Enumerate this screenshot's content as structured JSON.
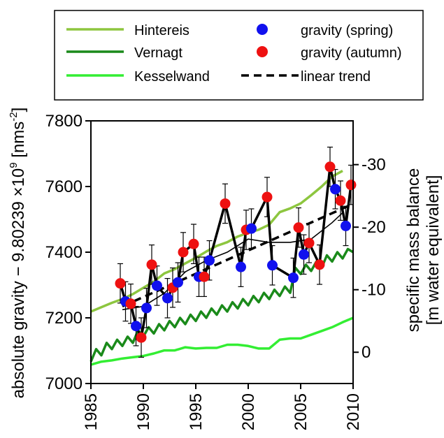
{
  "chart_data": {
    "type": "line",
    "x_axis": {
      "range": [
        1985,
        2010
      ],
      "ticks": [
        "1985",
        "1990",
        "1995",
        "2000",
        "2005",
        "2010"
      ]
    },
    "y_left": {
      "label_main": "absolute gravity − 9.80239 ×10",
      "label_sup1": "9",
      "label_unit": " [nms",
      "label_sup2": "-2",
      "label_end": "]",
      "range": [
        7000,
        7800
      ],
      "ticks": [
        "7000",
        "7200",
        "7400",
        "7600",
        "7800"
      ]
    },
    "y_right": {
      "label_line1": "specific mass balance",
      "label_line2": "[m water equivalent]",
      "range_top": -37,
      "range_bottom": 5,
      "ticks": [
        "0",
        "-10",
        "-20",
        "-30"
      ]
    },
    "legend": {
      "position": "top",
      "entries": [
        {
          "key": "hintereis",
          "label": "Hintereis",
          "kind": "line",
          "color": "#8dc63f",
          "dash": false
        },
        {
          "key": "vernagt",
          "label": "Vernagt",
          "kind": "line",
          "color": "#1a8a1a",
          "dash": false
        },
        {
          "key": "kesselwand",
          "label": "Kesselwand",
          "kind": "line",
          "color": "#33ee33",
          "dash": false
        },
        {
          "key": "spring",
          "label": "gravity (spring)",
          "kind": "marker",
          "color": "#1111ee"
        },
        {
          "key": "autumn",
          "label": "gravity (autumn)",
          "kind": "marker",
          "color": "#ee1111"
        },
        {
          "key": "trend",
          "label": "linear trend",
          "kind": "line",
          "color": "#000000",
          "dash": true
        }
      ]
    },
    "mass_balance_series": [
      {
        "key": "hintereis",
        "color": "#8dc63f",
        "width": 3.5,
        "x": [
          1985,
          1986,
          1987,
          1988,
          1989,
          1990,
          1991,
          1992,
          1993,
          1994,
          1995,
          1996,
          1997,
          1998,
          1999,
          2000,
          2001,
          2002,
          2003,
          2004,
          2005,
          2006,
          2007,
          2008,
          2009
        ],
        "y": [
          -6.5,
          -7.2,
          -7.9,
          -8.5,
          -9.3,
          -10.3,
          -11.3,
          -12.6,
          -13.3,
          -14.2,
          -15.1,
          -16.1,
          -17.0,
          -17.6,
          -18.5,
          -19.1,
          -19.6,
          -20.4,
          -22.4,
          -23.0,
          -23.8,
          -25.1,
          -26.5,
          -28.1,
          -29.0
        ]
      },
      {
        "key": "vernagt",
        "color": "#1a8a1a",
        "width": 3.5,
        "x": [
          1985,
          1985.5,
          1986,
          1986.5,
          1987,
          1987.5,
          1988,
          1988.5,
          1989,
          1989.5,
          1990,
          1990.5,
          1991,
          1991.5,
          1992,
          1992.5,
          1993,
          1993.5,
          1994,
          1994.5,
          1995,
          1995.5,
          1996,
          1996.5,
          1997,
          1997.5,
          1998,
          1998.5,
          1999,
          1999.5,
          2000,
          2000.5,
          2001,
          2001.5,
          2002,
          2002.5,
          2003,
          2003.5,
          2004,
          2004.5,
          2005,
          2005.5,
          2006,
          2006.5,
          2007,
          2007.5,
          2008,
          2008.5,
          2009,
          2009.5,
          2010
        ],
        "y": [
          1.5,
          -0.5,
          0.5,
          -1.5,
          -0.5,
          -2.0,
          -1.0,
          -2.5,
          -1.5,
          -3.5,
          -2.5,
          -4.0,
          -3.0,
          -4.5,
          -3.5,
          -5.0,
          -4.0,
          -5.5,
          -4.5,
          -6.0,
          -5.0,
          -6.5,
          -5.5,
          -7.0,
          -6.0,
          -7.5,
          -6.5,
          -8.0,
          -7.0,
          -8.5,
          -7.5,
          -9.0,
          -8.0,
          -9.5,
          -8.5,
          -10.0,
          -9.0,
          -10.5,
          -9.5,
          -13.5,
          -12.5,
          -14.0,
          -13.0,
          -14.5,
          -13.5,
          -15.5,
          -14.5,
          -16.0,
          -15.0,
          -16.5,
          -16.0
        ]
      },
      {
        "key": "kesselwand",
        "color": "#33ee33",
        "width": 3.5,
        "x": [
          1985,
          1986,
          1987,
          1988,
          1989,
          1990,
          1991,
          1992,
          1993,
          1994,
          1995,
          1996,
          1997,
          1998,
          1999,
          2000,
          2001,
          2002,
          2003,
          2004,
          2005,
          2006,
          2007,
          2008,
          2009,
          2010
        ],
        "y": [
          2.0,
          1.5,
          1.3,
          1.0,
          0.8,
          0.6,
          0.2,
          -0.3,
          -0.3,
          -0.8,
          -0.6,
          -0.7,
          -0.7,
          -1.2,
          -1.2,
          -1.0,
          -0.6,
          -0.6,
          -2.0,
          -2.2,
          -2.2,
          -2.8,
          -3.4,
          -4.0,
          -4.8,
          -5.5
        ]
      }
    ],
    "gravity_thin_line": {
      "color": "#000000",
      "x": [
        1988,
        1990,
        1992,
        1994,
        1996,
        1998,
        2000,
        2002,
        2004,
        2006,
        2008,
        2009
      ],
      "y": [
        7225,
        7235,
        7275,
        7340,
        7375,
        7400,
        7440,
        7430,
        7430,
        7440,
        7490,
        7520
      ]
    },
    "gravity_trend": {
      "x": [
        1988,
        2009.5
      ],
      "y": [
        7235,
        7540
      ]
    },
    "gravity_points": [
      {
        "x": 1987.8,
        "y": 7305,
        "err": 60,
        "season": "autumn"
      },
      {
        "x": 1988.3,
        "y": 7250,
        "err": 60,
        "season": "spring"
      },
      {
        "x": 1988.8,
        "y": 7243,
        "err": 60,
        "season": "autumn"
      },
      {
        "x": 1989.3,
        "y": 7175,
        "err": 60,
        "season": "spring"
      },
      {
        "x": 1989.8,
        "y": 7140,
        "err": 60,
        "season": "autumn"
      },
      {
        "x": 1990.3,
        "y": 7230,
        "err": 60,
        "season": "spring"
      },
      {
        "x": 1990.8,
        "y": 7362,
        "err": 60,
        "season": "autumn"
      },
      {
        "x": 1991.3,
        "y": 7298,
        "err": 60,
        "season": "spring"
      },
      {
        "x": 1992.3,
        "y": 7260,
        "err": 60,
        "season": "spring"
      },
      {
        "x": 1992.8,
        "y": 7292,
        "err": 60,
        "season": "autumn"
      },
      {
        "x": 1993.3,
        "y": 7308,
        "err": 60,
        "season": "spring"
      },
      {
        "x": 1993.8,
        "y": 7400,
        "err": 60,
        "season": "autumn"
      },
      {
        "x": 1994.8,
        "y": 7425,
        "err": 60,
        "season": "autumn"
      },
      {
        "x": 1995.3,
        "y": 7325,
        "err": 60,
        "season": "spring"
      },
      {
        "x": 1995.8,
        "y": 7325,
        "err": 60,
        "season": "autumn"
      },
      {
        "x": 1996.3,
        "y": 7375,
        "err": 60,
        "season": "spring"
      },
      {
        "x": 1997.8,
        "y": 7548,
        "err": 60,
        "season": "autumn"
      },
      {
        "x": 1999.3,
        "y": 7355,
        "err": 60,
        "season": "spring"
      },
      {
        "x": 1999.8,
        "y": 7468,
        "err": 60,
        "season": "autumn"
      },
      {
        "x": 2000.3,
        "y": 7472,
        "err": 60,
        "season": "spring"
      },
      {
        "x": 2001.8,
        "y": 7568,
        "err": 60,
        "season": "autumn"
      },
      {
        "x": 2002.3,
        "y": 7360,
        "err": 60,
        "season": "spring"
      },
      {
        "x": 2004.3,
        "y": 7322,
        "err": 60,
        "season": "spring"
      },
      {
        "x": 2004.8,
        "y": 7475,
        "err": 60,
        "season": "autumn"
      },
      {
        "x": 2005.3,
        "y": 7393,
        "err": 60,
        "season": "spring"
      },
      {
        "x": 2005.8,
        "y": 7428,
        "err": 60,
        "season": "autumn"
      },
      {
        "x": 2006.8,
        "y": 7362,
        "err": 60,
        "season": "autumn"
      },
      {
        "x": 2007.8,
        "y": 7660,
        "err": 60,
        "season": "autumn"
      },
      {
        "x": 2008.3,
        "y": 7592,
        "err": 60,
        "season": "spring"
      },
      {
        "x": 2008.8,
        "y": 7557,
        "err": 60,
        "season": "autumn"
      },
      {
        "x": 2009.3,
        "y": 7480,
        "err": 60,
        "season": "spring"
      },
      {
        "x": 2009.8,
        "y": 7605,
        "err": 60,
        "season": "autumn"
      }
    ],
    "grid": false
  }
}
